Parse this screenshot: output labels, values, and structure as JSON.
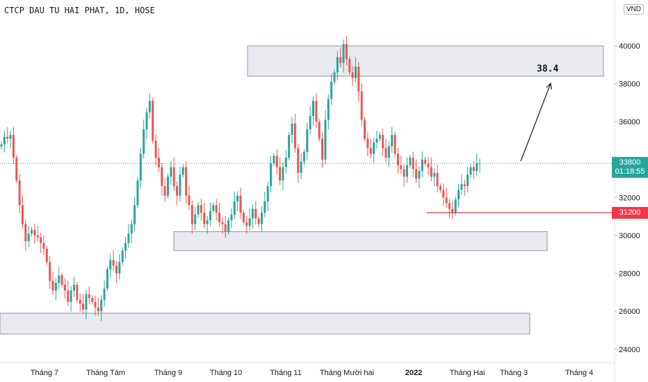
{
  "header": {
    "title": "CTCP DAU TU HAI PHAT, 1D, HOSE",
    "currency_badge": "VND"
  },
  "price_tags": {
    "current_price": "33800",
    "countdown": "01:18:55",
    "support_price": "31200"
  },
  "colors": {
    "up": "#26a69a",
    "down": "#ef5350",
    "current_line": "#26a69a",
    "support_line": "#f23645",
    "zone_fill": "#e0e3eb",
    "zone_border": "#9598a1"
  },
  "chart_data": {
    "type": "candlestick",
    "title": "CTCP DAU TU HAI PHAT, 1D, HOSE",
    "ylim": [
      23500,
      41500
    ],
    "y_ticks": [
      24000,
      26000,
      28000,
      30000,
      32000,
      34000,
      36000,
      38000,
      40000
    ],
    "x_labels": [
      "Tháng 7",
      "Tháng Tám",
      "Tháng 9",
      "Tháng 10",
      "Tháng 11",
      "Tháng Mười hai",
      "2022",
      "Tháng Hai",
      "Tháng 3",
      "Tháng 4"
    ],
    "annotation_text": "38.4",
    "current_price": 33800,
    "support_level": 31200,
    "closes": [
      34800,
      35200,
      35100,
      35300,
      34100,
      32900,
      31600,
      30600,
      29700,
      30100,
      30300,
      30000,
      29900,
      29600,
      29300,
      28600,
      27600,
      27100,
      27500,
      27900,
      27400,
      27100,
      26500,
      27100,
      27400,
      26600,
      26400,
      26100,
      26900,
      26700,
      26500,
      26200,
      26000,
      26600,
      27200,
      28200,
      28700,
      28400,
      28000,
      28600,
      29200,
      29600,
      30100,
      30600,
      31600,
      32900,
      34300,
      35600,
      36500,
      37100,
      35000,
      34100,
      33600,
      32600,
      32100,
      33100,
      33600,
      32600,
      32100,
      33200,
      33600,
      32100,
      31600,
      30600,
      31100,
      31600,
      31200,
      30600,
      30800,
      31300,
      31600,
      31200,
      30700,
      30600,
      30200,
      30800,
      31100,
      31800,
      32100,
      31200,
      30700,
      30500,
      30900,
      31400,
      30900,
      30600,
      31200,
      31800,
      32600,
      33800,
      34200,
      33600,
      32900,
      33600,
      34100,
      35300,
      35900,
      34600,
      33300,
      33900,
      34400,
      35600,
      36300,
      37100,
      36000,
      35100,
      34000,
      36100,
      37200,
      38100,
      38600,
      39400,
      39100,
      40100,
      39300,
      38600,
      38300,
      38900,
      37600,
      36100,
      35100,
      34600,
      34300,
      34900,
      35100,
      35300,
      34600,
      34100,
      34700,
      35300,
      34300,
      33700,
      33500,
      33100,
      33700,
      34100,
      33500,
      33000,
      33400,
      34000,
      33800,
      33600,
      33100,
      33300,
      32600,
      32400,
      32000,
      31700,
      31400,
      31200,
      31900,
      32400,
      32700,
      32600,
      33200,
      33600,
      33400,
      33800,
      33800
    ]
  }
}
